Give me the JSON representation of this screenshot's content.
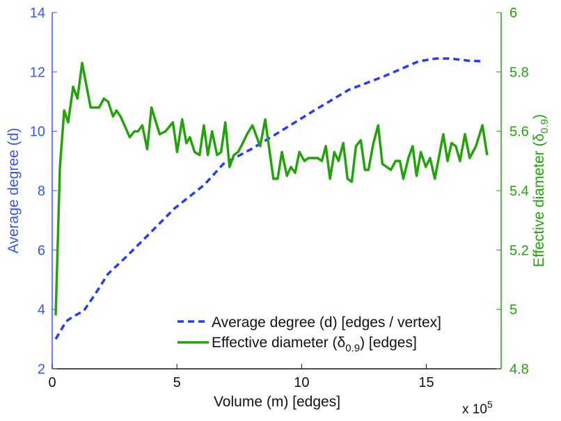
{
  "chart_data": {
    "type": "line",
    "xlabel": "Volume (m) [edges]",
    "x_multiplier": "x 10",
    "x_multiplier_exp": "5",
    "ylabel_left": "Average degree (d)",
    "ylabel_right_main": "Effective diameter (δ",
    "ylabel_right_sub": "0.9",
    "ylabel_right_end": ")",
    "xlim": [
      0,
      18
    ],
    "ylim_left": [
      2,
      14
    ],
    "ylim_right": [
      4.8,
      6
    ],
    "xticks": [
      "0",
      "5",
      "10",
      "15"
    ],
    "xtick_values": [
      0,
      5,
      10,
      15
    ],
    "yticks_left": [
      "2",
      "4",
      "6",
      "8",
      "10",
      "12",
      "14"
    ],
    "ytick_left_values": [
      2,
      4,
      6,
      8,
      10,
      12,
      14
    ],
    "yticks_right": [
      "4.8",
      "5",
      "5.2",
      "5.4",
      "5.6",
      "5.8",
      "6"
    ],
    "ytick_right_values": [
      4.8,
      5,
      5.2,
      5.4,
      5.6,
      5.8,
      6
    ],
    "legend_position": "bottom-right",
    "colors": {
      "left": "#3355ff",
      "right": "#22a30a",
      "blue_line": "#1f3cff",
      "green_line": "#22a30a"
    },
    "series": [
      {
        "name": "Average degree (d) [edges / vertex]",
        "axis": "left",
        "style": "dashed",
        "x": [
          0.14,
          0.56,
          0.84,
          1.26,
          1.68,
          2.24,
          2.94,
          3.78,
          4.9,
          6.1,
          6.86,
          7.98,
          9.1,
          10.5,
          11.9,
          13.3,
          14.7,
          15.4,
          15.96,
          16.66,
          17.2
        ],
        "y": [
          3.0,
          3.6,
          3.76,
          3.95,
          4.46,
          5.2,
          5.75,
          6.45,
          7.4,
          8.2,
          8.9,
          9.4,
          9.97,
          10.7,
          11.4,
          11.85,
          12.36,
          12.45,
          12.45,
          12.38,
          12.36
        ]
      },
      {
        "name_main": "Effective diameter (δ",
        "name_sub": "0.9",
        "name_end": ") [edges]",
        "axis": "right",
        "style": "solid",
        "x": [
          0.14,
          0.31,
          0.48,
          0.64,
          0.84,
          1.01,
          1.2,
          1.54,
          1.76,
          1.88,
          2.07,
          2.24,
          2.44,
          2.58,
          2.74,
          3.11,
          3.3,
          3.44,
          3.61,
          3.81,
          3.98,
          4.31,
          4.54,
          4.84,
          5.01,
          5.21,
          5.38,
          5.52,
          5.71,
          5.91,
          6.08,
          6.24,
          6.41,
          6.61,
          6.77,
          6.94,
          7.11,
          7.28,
          7.45,
          7.64,
          7.81,
          8.03,
          8.34,
          8.54,
          8.87,
          9.04,
          9.21,
          9.41,
          9.57,
          9.74,
          9.91,
          10.11,
          10.27,
          10.44,
          10.64,
          10.81,
          10.97,
          11.14,
          11.31,
          11.48,
          11.67,
          11.84,
          12.01,
          12.18,
          12.37,
          12.54,
          12.68,
          12.88,
          13.07,
          13.24,
          13.58,
          13.77,
          13.94,
          14.08,
          14.28,
          14.45,
          14.61,
          14.78,
          14.98,
          15.15,
          15.34,
          15.68,
          15.85,
          16.01,
          16.18,
          16.35,
          16.55,
          16.74,
          16.99,
          17.25,
          17.44
        ],
        "y": [
          4.98,
          5.48,
          5.67,
          5.63,
          5.75,
          5.71,
          5.83,
          5.68,
          5.68,
          5.68,
          5.71,
          5.7,
          5.65,
          5.67,
          5.65,
          5.58,
          5.6,
          5.6,
          5.62,
          5.54,
          5.68,
          5.59,
          5.6,
          5.63,
          5.53,
          5.64,
          5.56,
          5.58,
          5.53,
          5.52,
          5.62,
          5.52,
          5.6,
          5.52,
          5.53,
          5.63,
          5.48,
          5.52,
          5.53,
          5.56,
          5.59,
          5.62,
          5.55,
          5.64,
          5.44,
          5.44,
          5.53,
          5.45,
          5.48,
          5.46,
          5.53,
          5.5,
          5.51,
          5.51,
          5.51,
          5.5,
          5.55,
          5.44,
          5.53,
          5.5,
          5.56,
          5.44,
          5.43,
          5.55,
          5.57,
          5.47,
          5.47,
          5.56,
          5.62,
          5.49,
          5.47,
          5.5,
          5.5,
          5.44,
          5.51,
          5.55,
          5.45,
          5.53,
          5.48,
          5.51,
          5.44,
          5.59,
          5.5,
          5.56,
          5.55,
          5.5,
          5.59,
          5.51,
          5.55,
          5.62,
          5.52
        ]
      }
    ]
  }
}
